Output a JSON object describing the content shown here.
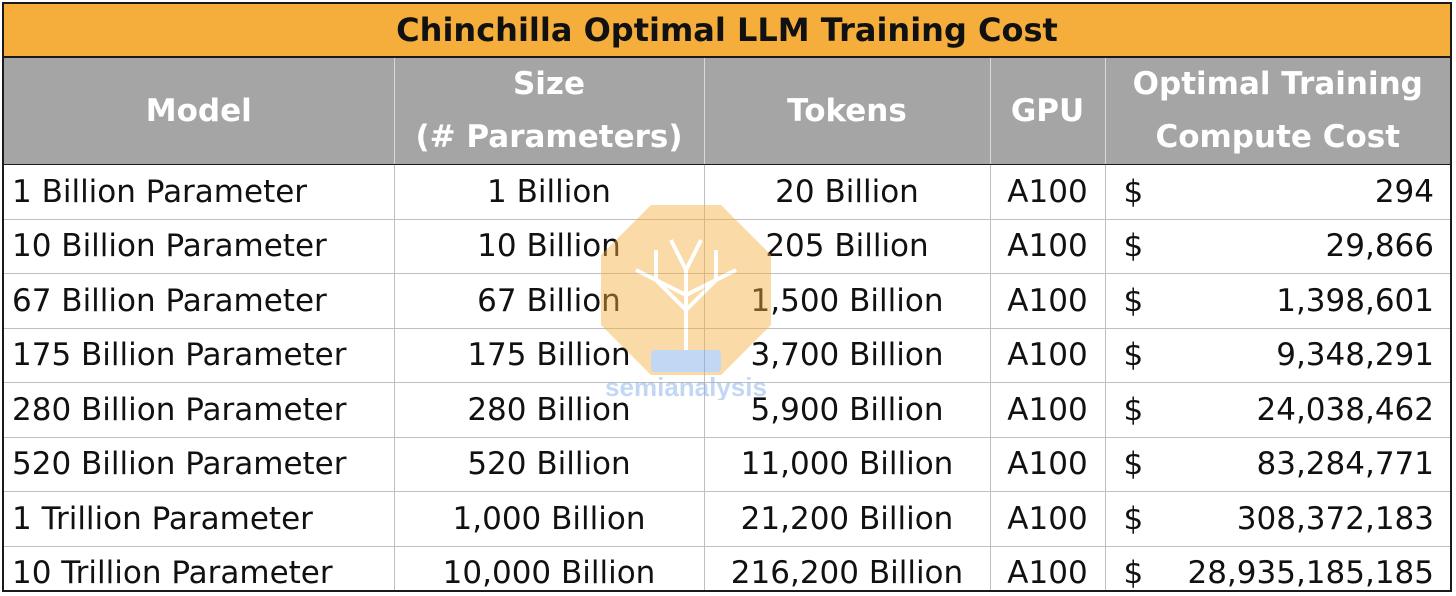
{
  "title": "Chinchilla Optimal LLM Training Cost",
  "headers": {
    "model": "Model",
    "size_line1": "Size",
    "size_line2": "(# Parameters)",
    "tokens": "Tokens",
    "gpu": "GPU",
    "cost_line1": "Optimal Training",
    "cost_line2": "Compute Cost"
  },
  "rows": [
    {
      "model": "1 Billion Parameter",
      "size": "1 Billion",
      "tokens": "20 Billion",
      "gpu": "A100",
      "currency": "$",
      "cost": "294"
    },
    {
      "model": "10 Billion Parameter",
      "size": "10 Billion",
      "tokens": "205 Billion",
      "gpu": "A100",
      "currency": "$",
      "cost": "29,866"
    },
    {
      "model": "67 Billion Parameter",
      "size": "67 Billion",
      "tokens": "1,500 Billion",
      "gpu": "A100",
      "currency": "$",
      "cost": "1,398,601"
    },
    {
      "model": "175 Billion Parameter",
      "size": "175 Billion",
      "tokens": "3,700 Billion",
      "gpu": "A100",
      "currency": "$",
      "cost": "9,348,291"
    },
    {
      "model": "280 Billion Parameter",
      "size": "280 Billion",
      "tokens": "5,900 Billion",
      "gpu": "A100",
      "currency": "$",
      "cost": "24,038,462"
    },
    {
      "model": "520 Billion Parameter",
      "size": "520 Billion",
      "tokens": "11,000 Billion",
      "gpu": "A100",
      "currency": "$",
      "cost": "83,284,771"
    },
    {
      "model": "1 Trillion Parameter",
      "size": "1,000 Billion",
      "tokens": "21,200 Billion",
      "gpu": "A100",
      "currency": "$",
      "cost": "308,372,183"
    },
    {
      "model": "10 Trillion Parameter",
      "size": "10,000 Billion",
      "tokens": "216,200 Billion",
      "gpu": "A100",
      "currency": "$",
      "cost": "28,935,185,185"
    }
  ],
  "watermark": {
    "text": "semianalysis",
    "icon": "lightbulb-circuit-logo",
    "color_primary": "#f5ae3b",
    "color_secondary": "#7aa7e8"
  },
  "colors": {
    "title_bg": "#f5ae3b",
    "header_bg": "#a5a5a5",
    "header_text": "#ffffff",
    "border": "#1a1a1a"
  }
}
